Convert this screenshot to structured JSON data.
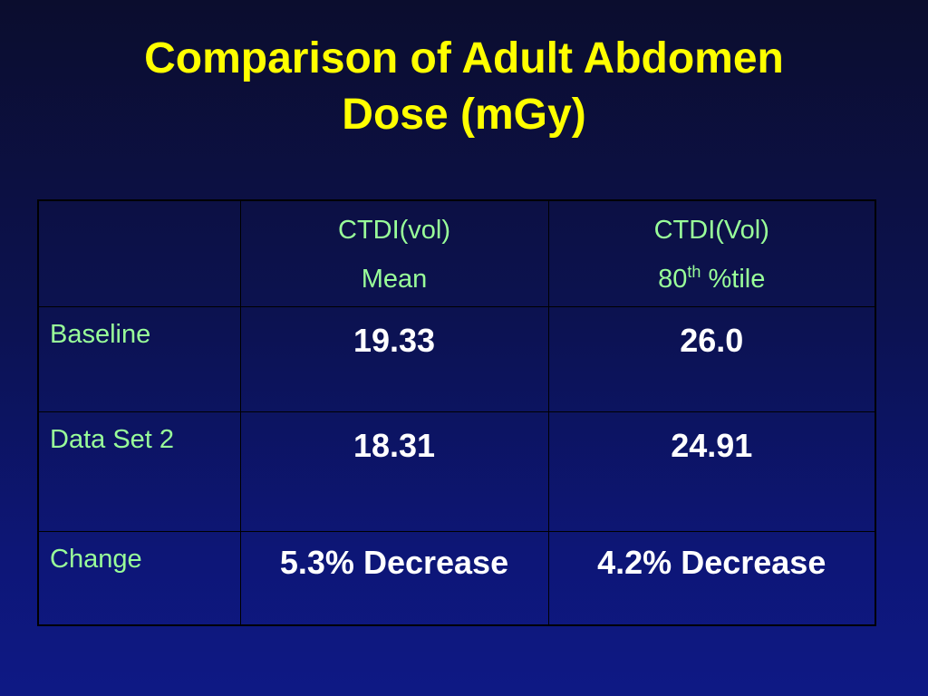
{
  "slide": {
    "title_line1": "Comparison of Adult Abdomen",
    "title_line2": "Dose (mGy)"
  },
  "table": {
    "headers": [
      {
        "line1": "",
        "line2": ""
      },
      {
        "line1": "CTDI(vol)",
        "line2": "Mean"
      },
      {
        "line1": "CTDI(Vol)",
        "line2_main": "80",
        "line2_sup": "th",
        "line2_rest": " %tile"
      }
    ],
    "rows": [
      {
        "label": "Baseline",
        "mean": "19.33",
        "p80": "26.0"
      },
      {
        "label": "Data Set 2",
        "mean": "18.31",
        "p80": "24.91"
      },
      {
        "label": "Change",
        "mean": "5.3% Decrease",
        "p80": "4.2% Decrease"
      }
    ]
  },
  "colors": {
    "title": "#ffff00",
    "label_text": "#99ff99",
    "value_text": "#ffffff",
    "background": "#0d1677"
  }
}
